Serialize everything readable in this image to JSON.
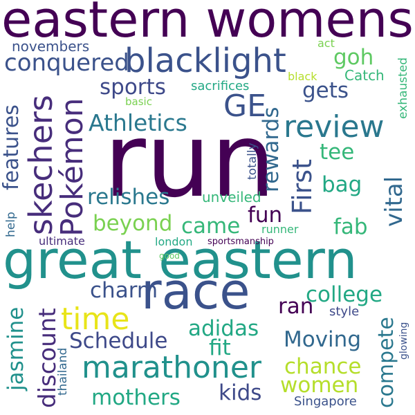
{
  "words": [
    {
      "id": "eastern-womens",
      "text": "eastern womens",
      "color": "#440154"
    },
    {
      "id": "run",
      "text": "run",
      "color": "#440154"
    },
    {
      "id": "great-eastern",
      "text": "great eastern",
      "color": "#21918c"
    },
    {
      "id": "race",
      "text": "race",
      "color": "#3b528b"
    },
    {
      "id": "blacklight",
      "text": "blacklight",
      "color": "#3b528b"
    },
    {
      "id": "marathoner",
      "text": "marathoner",
      "color": "#21918c"
    },
    {
      "id": "review",
      "text": "review",
      "color": "#2a788e"
    },
    {
      "id": "skechers",
      "text": "skechers",
      "color": "#472d7b"
    },
    {
      "id": "pokemon",
      "text": "Pokémon",
      "color": "#472d7b"
    },
    {
      "id": "ge",
      "text": "GE",
      "color": "#3b528b"
    },
    {
      "id": "time",
      "text": "time",
      "color": "#e8e419"
    },
    {
      "id": "conquered",
      "text": "conquered",
      "color": "#3b528b"
    },
    {
      "id": "athletics",
      "text": "Athletics",
      "color": "#2a788e"
    },
    {
      "id": "relishes",
      "text": "relishes",
      "color": "#2a788e"
    },
    {
      "id": "sports",
      "text": "sports",
      "color": "#3e4989"
    },
    {
      "id": "gets",
      "text": "gets",
      "color": "#3b528b"
    },
    {
      "id": "goh",
      "text": "goh",
      "color": "#5ec962"
    },
    {
      "id": "features",
      "text": "features",
      "color": "#3b528b"
    },
    {
      "id": "rewards",
      "text": "rewards",
      "color": "#31688e"
    },
    {
      "id": "first",
      "text": "First",
      "color": "#3b528b"
    },
    {
      "id": "tee",
      "text": "tee",
      "color": "#35b779"
    },
    {
      "id": "bag",
      "text": "bag",
      "color": "#22a884"
    },
    {
      "id": "vital",
      "text": "vital",
      "color": "#31688e"
    },
    {
      "id": "beyond",
      "text": "beyond",
      "color": "#7ad151"
    },
    {
      "id": "came",
      "text": "came",
      "color": "#35b779"
    },
    {
      "id": "fun",
      "text": "fun",
      "color": "#440154"
    },
    {
      "id": "fab",
      "text": "fab",
      "color": "#35b779"
    },
    {
      "id": "unveiled",
      "text": "unveiled",
      "color": "#35b779"
    },
    {
      "id": "charm",
      "text": "charm",
      "color": "#3b528b"
    },
    {
      "id": "college",
      "text": "college",
      "color": "#22a884"
    },
    {
      "id": "discount",
      "text": "discount",
      "color": "#472d7b"
    },
    {
      "id": "jasmine",
      "text": "jasmine",
      "color": "#21918c"
    },
    {
      "id": "adidas",
      "text": "adidas",
      "color": "#22a884"
    },
    {
      "id": "fit",
      "text": "fit",
      "color": "#22a884"
    },
    {
      "id": "ran",
      "text": "ran",
      "color": "#440154"
    },
    {
      "id": "schedule",
      "text": "Schedule",
      "color": "#3e4989"
    },
    {
      "id": "moving",
      "text": "Moving",
      "color": "#31688e"
    },
    {
      "id": "compete",
      "text": "compete",
      "color": "#2a788e"
    },
    {
      "id": "chance",
      "text": "chance",
      "color": "#b5de2b"
    },
    {
      "id": "women",
      "text": "women",
      "color": "#b5de2b"
    },
    {
      "id": "mothers",
      "text": "mothers",
      "color": "#22a884"
    },
    {
      "id": "kids",
      "text": "kids",
      "color": "#3e4989"
    },
    {
      "id": "style",
      "text": "style",
      "color": "#3e4989"
    },
    {
      "id": "novembers",
      "text": "novembers",
      "color": "#3b528b"
    },
    {
      "id": "act",
      "text": "act",
      "color": "#7ad151"
    },
    {
      "id": "black",
      "text": "black",
      "color": "#b5de2b"
    },
    {
      "id": "catch",
      "text": "Catch",
      "color": "#35b779"
    },
    {
      "id": "sacrifices",
      "text": "sacrifices",
      "color": "#22a884"
    },
    {
      "id": "basic",
      "text": "basic",
      "color": "#7ad151"
    },
    {
      "id": "exhausted",
      "text": "exhausted",
      "color": "#35b779"
    },
    {
      "id": "totally",
      "text": "totally",
      "color": "#3b528b"
    },
    {
      "id": "help",
      "text": "help",
      "color": "#31688e"
    },
    {
      "id": "runner",
      "text": "runner",
      "color": "#35b779"
    },
    {
      "id": "ultimate",
      "text": "ultimate",
      "color": "#472d7b"
    },
    {
      "id": "london",
      "text": "london",
      "color": "#22a884"
    },
    {
      "id": "sportsmanship",
      "text": "sportsmanship",
      "color": "#440154"
    },
    {
      "id": "good",
      "text": "good",
      "color": "#5ec962"
    },
    {
      "id": "glowing",
      "text": "glowing",
      "color": "#3b528b"
    },
    {
      "id": "thailand",
      "text": "thailand",
      "color": "#31688e"
    },
    {
      "id": "singapore",
      "text": "Singapore",
      "color": "#3b528b"
    }
  ]
}
